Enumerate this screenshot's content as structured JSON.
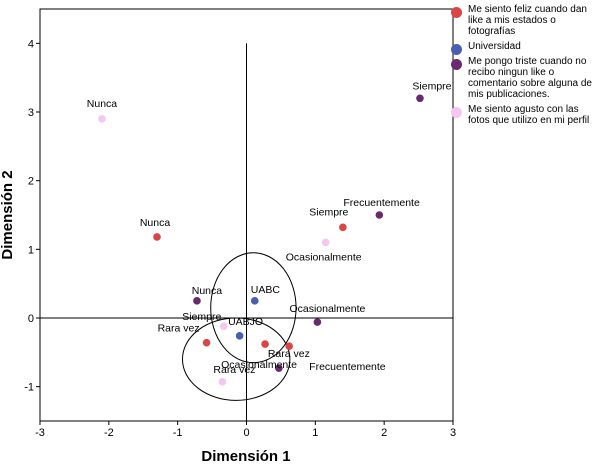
{
  "chart_data": {
    "type": "scatter",
    "title": "",
    "xlabel": "Dimensión 1",
    "ylabel": "Dimensión 2",
    "xlim": [
      -3,
      3
    ],
    "ylim": [
      -1.5,
      4.5
    ],
    "xticks": [
      "-3",
      "-2",
      "-1",
      "0",
      "1",
      "2",
      "3"
    ],
    "yticks": [
      "4",
      "3",
      "2",
      "1",
      "0",
      "-1"
    ],
    "grid": false,
    "legend_position": "right",
    "series": [
      {
        "name": "Me siento feliz cuando dan like a mis estados o fotografías",
        "color": "#d94646",
        "points": [
          {
            "label": "Nunca",
            "x": -1.3,
            "y": 1.18
          },
          {
            "label": "Siempre",
            "x": 1.4,
            "y": 1.32
          },
          {
            "label": "Rara vez",
            "x": -0.58,
            "y": -0.36
          },
          {
            "label": "Ocasionalmente",
            "x": 0.27,
            "y": -0.38
          },
          {
            "label": "Frecuentemente",
            "x": 0.62,
            "y": -0.41
          }
        ]
      },
      {
        "name": "Universidad",
        "color": "#4a5fb0",
        "points": [
          {
            "label": "UABC",
            "x": 0.12,
            "y": 0.25
          },
          {
            "label": "UABJO",
            "x": -0.1,
            "y": -0.26
          }
        ]
      },
      {
        "name": "Me pongo triste cuando no recibo ningun like o comentario sobre alguna de mis publicaciones.",
        "color": "#6b2a6e",
        "points": [
          {
            "label": "Siempre",
            "x": 2.52,
            "y": 3.2
          },
          {
            "label": "Frecuentemente",
            "x": 1.93,
            "y": 1.5
          },
          {
            "label": "Nunca",
            "x": -0.72,
            "y": 0.25
          },
          {
            "label": "Ocasionalmente",
            "x": 1.03,
            "y": -0.06
          },
          {
            "label": "Rara vez",
            "x": 0.47,
            "y": -0.73
          }
        ]
      },
      {
        "name": "Me siento agusto con las fotos que utilizo en mi perfil",
        "color": "#f5c6f0",
        "points": [
          {
            "label": "Nunca",
            "x": -2.1,
            "y": 2.9
          },
          {
            "label": "Ocasionalmente",
            "x": 1.15,
            "y": 1.1
          },
          {
            "label": "Siempre",
            "x": -0.33,
            "y": -0.12
          },
          {
            "label": "Rara vez",
            "x": -0.35,
            "y": -0.93
          }
        ]
      }
    ],
    "annotations": [
      {
        "type": "ellipse",
        "cx": 0.1,
        "cy": 0.15,
        "rx": 0.62,
        "ry": 0.8
      },
      {
        "type": "ellipse",
        "cx": -0.15,
        "cy": -0.6,
        "rx": 0.78,
        "ry": 0.6
      }
    ]
  }
}
